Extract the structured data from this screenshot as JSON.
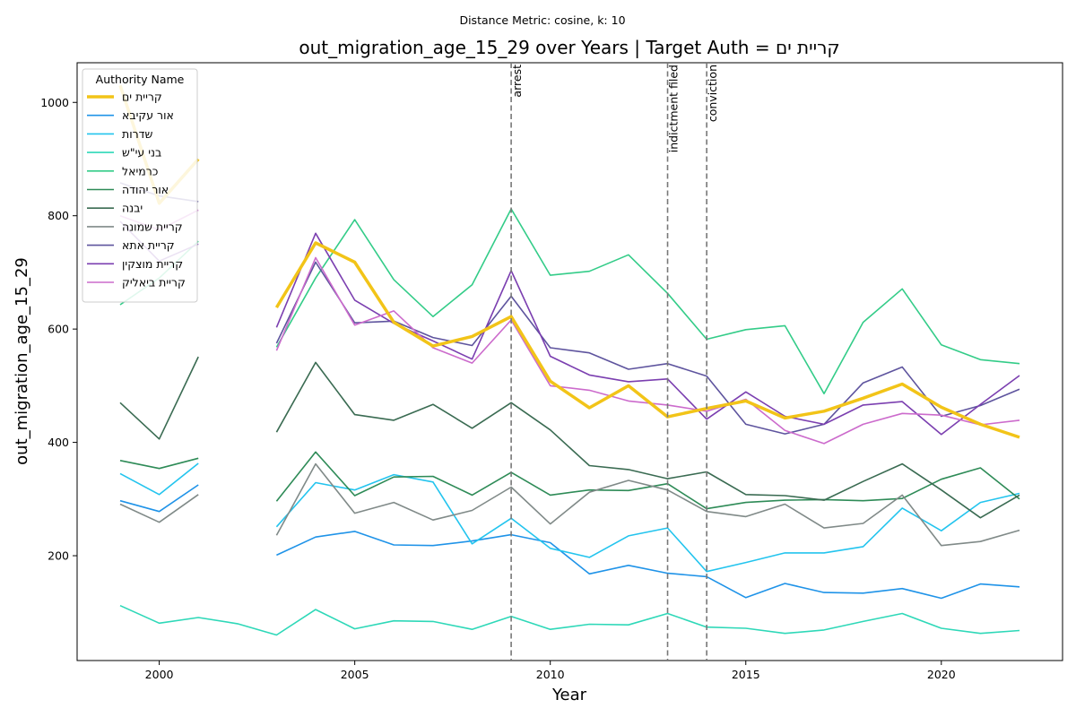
{
  "chart_data": {
    "type": "line",
    "suptitle": "Distance Metric: cosine, k: 10",
    "title": "out_migration_age_15_29 over Years | Target Auth = קריית ים",
    "xlabel": "Year",
    "ylabel": "out_migration_age_15_29",
    "xlim": [
      1997.9,
      2023.1
    ],
    "ylim": [
      15,
      1070
    ],
    "xticks": [
      2000,
      2005,
      2010,
      2015,
      2020
    ],
    "yticks": [
      200,
      400,
      600,
      800,
      1000
    ],
    "grid": false,
    "legend": {
      "title": "Authority Name",
      "placement": "top-left"
    },
    "events": [
      {
        "x": 2009,
        "label": "arrest"
      },
      {
        "x": 2013,
        "label": "indictment filed"
      },
      {
        "x": 2014,
        "label": "conviction"
      }
    ],
    "series": [
      {
        "name": "קריית ים",
        "color": "#f2c418",
        "highlight": true,
        "points": [
          [
            1999,
            1030
          ],
          [
            2000,
            822
          ],
          [
            2001,
            900
          ],
          [
            2003,
            638
          ],
          [
            2004,
            752
          ],
          [
            2005,
            718
          ],
          [
            2006,
            612
          ],
          [
            2007,
            570
          ],
          [
            2008,
            587
          ],
          [
            2009,
            622
          ],
          [
            2010,
            508
          ],
          [
            2011,
            461
          ],
          [
            2012,
            500
          ],
          [
            2013,
            445
          ],
          [
            2014,
            460
          ],
          [
            2015,
            473
          ],
          [
            2016,
            443
          ],
          [
            2017,
            455
          ],
          [
            2018,
            478
          ],
          [
            2019,
            503
          ],
          [
            2020,
            462
          ],
          [
            2021,
            432
          ],
          [
            2022,
            409
          ]
        ]
      },
      {
        "name": "אור עקיבא",
        "color": "#1f93e8",
        "points": [
          [
            1999,
            297
          ],
          [
            2000,
            278
          ],
          [
            2001,
            325
          ],
          [
            2003,
            201
          ],
          [
            2004,
            233
          ],
          [
            2005,
            243
          ],
          [
            2006,
            219
          ],
          [
            2007,
            218
          ],
          [
            2008,
            226
          ],
          [
            2009,
            237
          ],
          [
            2010,
            223
          ],
          [
            2011,
            168
          ],
          [
            2012,
            183
          ],
          [
            2013,
            169
          ],
          [
            2014,
            163
          ],
          [
            2015,
            126
          ],
          [
            2016,
            151
          ],
          [
            2017,
            135
          ],
          [
            2018,
            134
          ],
          [
            2019,
            142
          ],
          [
            2020,
            125
          ],
          [
            2021,
            150
          ],
          [
            2022,
            145
          ]
        ]
      },
      {
        "name": "שדרות",
        "color": "#23c4ee",
        "points": [
          [
            1999,
            345
          ],
          [
            2000,
            308
          ],
          [
            2001,
            363
          ],
          [
            2003,
            251
          ],
          [
            2004,
            329
          ],
          [
            2005,
            316
          ],
          [
            2006,
            343
          ],
          [
            2007,
            330
          ],
          [
            2008,
            221
          ],
          [
            2009,
            266
          ],
          [
            2010,
            213
          ],
          [
            2011,
            197
          ],
          [
            2012,
            235
          ],
          [
            2013,
            249
          ],
          [
            2014,
            172
          ],
          [
            2015,
            188
          ],
          [
            2016,
            205
          ],
          [
            2017,
            205
          ],
          [
            2018,
            216
          ],
          [
            2019,
            284
          ],
          [
            2020,
            244
          ],
          [
            2021,
            294
          ],
          [
            2022,
            310
          ]
        ]
      },
      {
        "name": "בני עי\"ש",
        "color": "#2ed8b8",
        "points": [
          [
            1999,
            112
          ],
          [
            2000,
            81
          ],
          [
            2001,
            91
          ],
          [
            2002,
            80
          ],
          [
            2003,
            60
          ],
          [
            2004,
            105
          ],
          [
            2005,
            71
          ],
          [
            2006,
            85
          ],
          [
            2007,
            84
          ],
          [
            2008,
            70
          ],
          [
            2009,
            93
          ],
          [
            2010,
            70
          ],
          [
            2011,
            79
          ],
          [
            2012,
            78
          ],
          [
            2013,
            98
          ],
          [
            2014,
            74
          ],
          [
            2015,
            72
          ],
          [
            2016,
            63
          ],
          [
            2017,
            69
          ],
          [
            2018,
            84
          ],
          [
            2019,
            98
          ],
          [
            2020,
            72
          ],
          [
            2021,
            63
          ],
          [
            2022,
            68
          ]
        ]
      },
      {
        "name": "כרמיאל",
        "color": "#33cc88",
        "points": [
          [
            1999,
            643
          ],
          [
            2000,
            690
          ],
          [
            2001,
            755
          ],
          [
            2003,
            568
          ],
          [
            2004,
            690
          ],
          [
            2005,
            793
          ],
          [
            2006,
            687
          ],
          [
            2007,
            622
          ],
          [
            2008,
            678
          ],
          [
            2009,
            812
          ],
          [
            2010,
            695
          ],
          [
            2011,
            702
          ],
          [
            2012,
            731
          ],
          [
            2013,
            663
          ],
          [
            2014,
            582
          ],
          [
            2015,
            599
          ],
          [
            2016,
            606
          ],
          [
            2017,
            486
          ],
          [
            2018,
            612
          ],
          [
            2019,
            671
          ],
          [
            2020,
            572
          ],
          [
            2021,
            546
          ],
          [
            2022,
            539
          ]
        ]
      },
      {
        "name": "אור יהודה",
        "color": "#2e8b57",
        "points": [
          [
            1999,
            368
          ],
          [
            2000,
            354
          ],
          [
            2001,
            372
          ],
          [
            2003,
            296
          ],
          [
            2004,
            383
          ],
          [
            2005,
            306
          ],
          [
            2006,
            339
          ],
          [
            2007,
            340
          ],
          [
            2008,
            307
          ],
          [
            2009,
            347
          ],
          [
            2010,
            307
          ],
          [
            2011,
            316
          ],
          [
            2012,
            315
          ],
          [
            2013,
            327
          ],
          [
            2014,
            283
          ],
          [
            2015,
            294
          ],
          [
            2016,
            298
          ],
          [
            2017,
            299
          ],
          [
            2018,
            297
          ],
          [
            2019,
            301
          ],
          [
            2020,
            335
          ],
          [
            2021,
            355
          ],
          [
            2022,
            300
          ]
        ]
      },
      {
        "name": "יבנה",
        "color": "#3a6b52",
        "points": [
          [
            1999,
            470
          ],
          [
            2000,
            406
          ],
          [
            2001,
            551
          ],
          [
            2003,
            418
          ],
          [
            2004,
            541
          ],
          [
            2005,
            449
          ],
          [
            2006,
            439
          ],
          [
            2007,
            467
          ],
          [
            2008,
            425
          ],
          [
            2009,
            470
          ],
          [
            2010,
            422
          ],
          [
            2011,
            359
          ],
          [
            2012,
            352
          ],
          [
            2013,
            336
          ],
          [
            2014,
            348
          ],
          [
            2015,
            308
          ],
          [
            2016,
            306
          ],
          [
            2017,
            298
          ],
          [
            2018,
            331
          ],
          [
            2019,
            362
          ],
          [
            2020,
            316
          ],
          [
            2021,
            267
          ],
          [
            2022,
            307
          ]
        ]
      },
      {
        "name": "קריית שמונה",
        "color": "#808a88",
        "points": [
          [
            1999,
            291
          ],
          [
            2000,
            259
          ],
          [
            2001,
            308
          ],
          [
            2003,
            236
          ],
          [
            2004,
            362
          ],
          [
            2005,
            275
          ],
          [
            2006,
            294
          ],
          [
            2007,
            263
          ],
          [
            2008,
            280
          ],
          [
            2009,
            321
          ],
          [
            2010,
            256
          ],
          [
            2011,
            312
          ],
          [
            2012,
            333
          ],
          [
            2013,
            316
          ],
          [
            2014,
            278
          ],
          [
            2015,
            269
          ],
          [
            2016,
            291
          ],
          [
            2017,
            249
          ],
          [
            2018,
            257
          ],
          [
            2019,
            307
          ],
          [
            2020,
            218
          ],
          [
            2021,
            225
          ],
          [
            2022,
            245
          ]
        ]
      },
      {
        "name": "קריית אתא",
        "color": "#5e549e",
        "points": [
          [
            1999,
            858
          ],
          [
            2000,
            835
          ],
          [
            2001,
            825
          ],
          [
            2003,
            575
          ],
          [
            2004,
            718
          ],
          [
            2005,
            611
          ],
          [
            2006,
            614
          ],
          [
            2007,
            585
          ],
          [
            2008,
            571
          ],
          [
            2009,
            658
          ],
          [
            2010,
            567
          ],
          [
            2011,
            558
          ],
          [
            2012,
            529
          ],
          [
            2013,
            539
          ],
          [
            2014,
            517
          ],
          [
            2015,
            432
          ],
          [
            2016,
            415
          ],
          [
            2017,
            432
          ],
          [
            2018,
            505
          ],
          [
            2019,
            533
          ],
          [
            2020,
            446
          ],
          [
            2021,
            465
          ],
          [
            2022,
            494
          ]
        ]
      },
      {
        "name": "קריית מוצקין",
        "color": "#7b3fb0",
        "points": [
          [
            1999,
            790
          ],
          [
            2000,
            720
          ],
          [
            2001,
            750
          ],
          [
            2003,
            603
          ],
          [
            2004,
            769
          ],
          [
            2005,
            651
          ],
          [
            2006,
            610
          ],
          [
            2007,
            579
          ],
          [
            2008,
            547
          ],
          [
            2009,
            703
          ],
          [
            2010,
            552
          ],
          [
            2011,
            519
          ],
          [
            2012,
            507
          ],
          [
            2013,
            512
          ],
          [
            2014,
            441
          ],
          [
            2015,
            489
          ],
          [
            2016,
            446
          ],
          [
            2017,
            432
          ],
          [
            2018,
            466
          ],
          [
            2019,
            472
          ],
          [
            2020,
            414
          ],
          [
            2021,
            467
          ],
          [
            2022,
            518
          ]
        ]
      },
      {
        "name": "קריית ביאליק",
        "color": "#cc6bcc",
        "points": [
          [
            1999,
            800
          ],
          [
            2000,
            775
          ],
          [
            2001,
            810
          ],
          [
            2003,
            562
          ],
          [
            2004,
            726
          ],
          [
            2005,
            607
          ],
          [
            2006,
            632
          ],
          [
            2007,
            567
          ],
          [
            2008,
            540
          ],
          [
            2009,
            616
          ],
          [
            2010,
            500
          ],
          [
            2011,
            492
          ],
          [
            2012,
            473
          ],
          [
            2013,
            466
          ],
          [
            2014,
            455
          ],
          [
            2015,
            476
          ],
          [
            2016,
            421
          ],
          [
            2017,
            398
          ],
          [
            2018,
            432
          ],
          [
            2019,
            451
          ],
          [
            2020,
            448
          ],
          [
            2021,
            431
          ],
          [
            2022,
            439
          ]
        ]
      }
    ]
  }
}
